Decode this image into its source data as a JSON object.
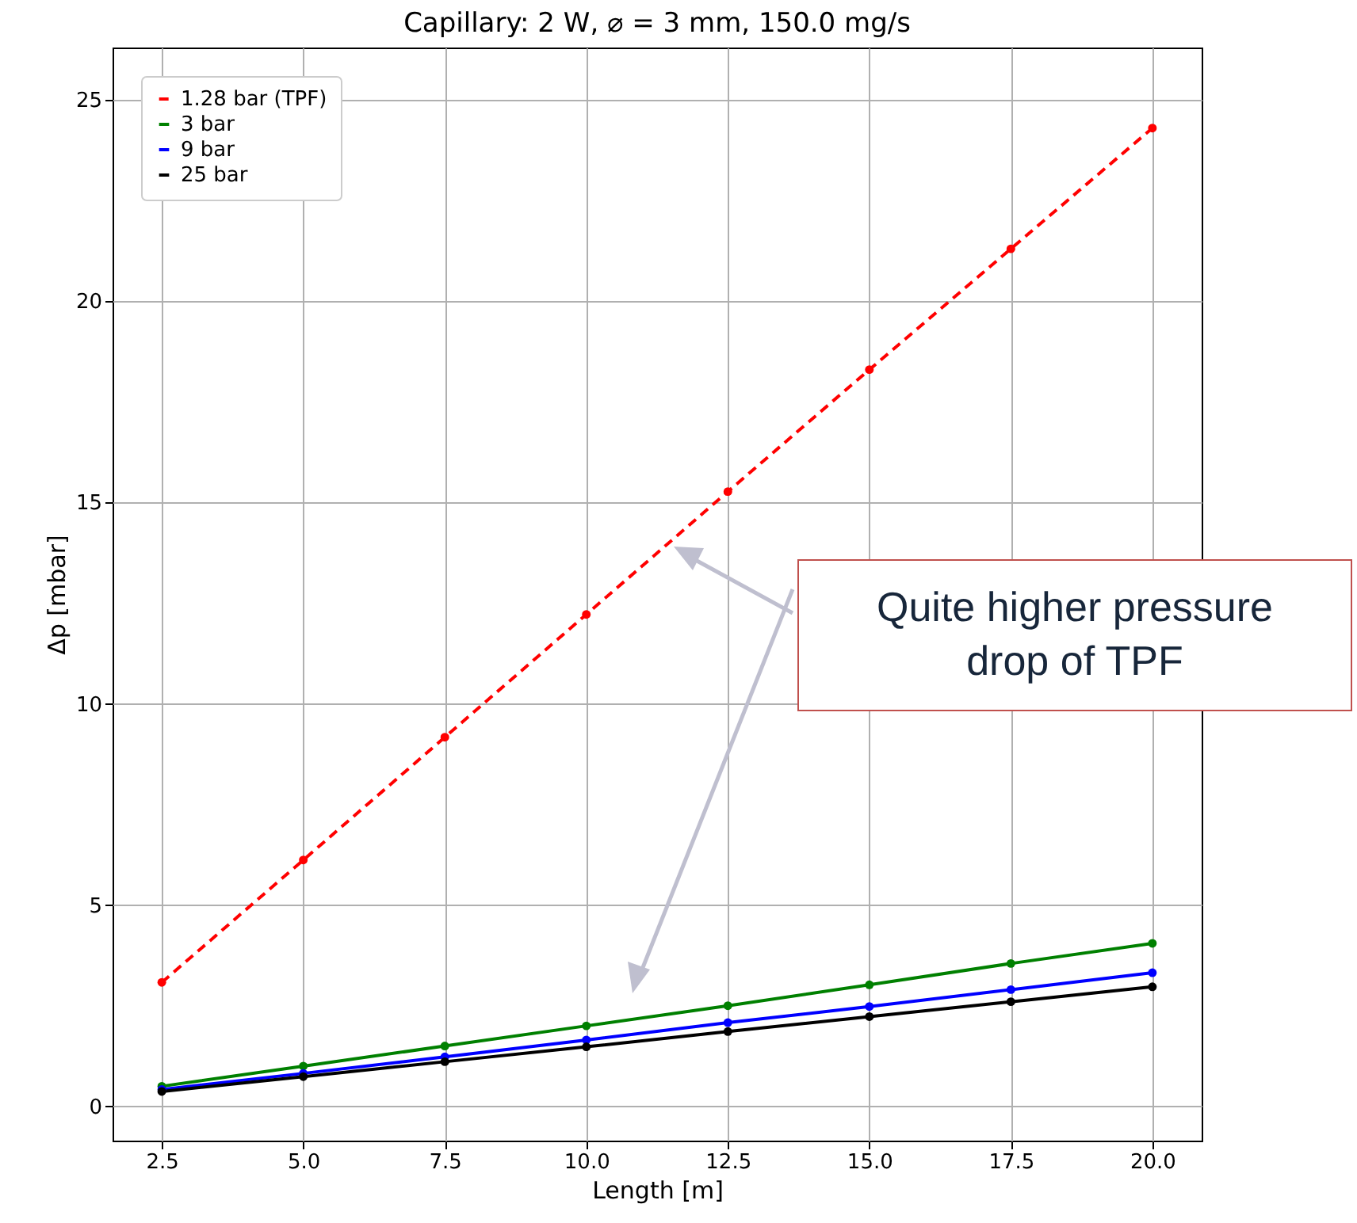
{
  "chart_data": {
    "type": "line",
    "title": "Capillary: 2 W, ⌀ = 3 mm, 150.0 mg/s",
    "xlabel": "Length [m]",
    "ylabel": "Δp [mbar]",
    "x": [
      2.5,
      5.0,
      7.5,
      10.0,
      12.5,
      15.0,
      17.5,
      20.0
    ],
    "series": [
      {
        "name": "1.28 bar (TPF)",
        "color": "#ff0000",
        "line_style": "dashed",
        "values": [
          3.08,
          6.12,
          9.17,
          12.22,
          15.27,
          18.3,
          21.3,
          24.3
        ]
      },
      {
        "name": "3 bar",
        "color": "#008000",
        "line_style": "solid",
        "values": [
          0.5,
          1.0,
          1.5,
          2.0,
          2.5,
          3.02,
          3.55,
          4.05
        ]
      },
      {
        "name": "9 bar",
        "color": "#0000ff",
        "line_style": "solid",
        "values": [
          0.42,
          0.82,
          1.23,
          1.65,
          2.08,
          2.48,
          2.9,
          3.32
        ]
      },
      {
        "name": "25 bar",
        "color": "#000000",
        "line_style": "solid",
        "values": [
          0.37,
          0.74,
          1.11,
          1.48,
          1.86,
          2.23,
          2.6,
          2.97
        ]
      }
    ],
    "xlim": [
      1.63,
      20.87
    ],
    "ylim": [
      -0.85,
      26.3
    ],
    "xticks": [
      {
        "value": 2.5,
        "label": "2.5"
      },
      {
        "value": 5,
        "label": "5.0"
      },
      {
        "value": 7.5,
        "label": "7.5"
      },
      {
        "value": 10,
        "label": "10.0"
      },
      {
        "value": 12.5,
        "label": "12.5"
      },
      {
        "value": 15,
        "label": "15.0"
      },
      {
        "value": 17.5,
        "label": "17.5"
      },
      {
        "value": 20,
        "label": "20.0"
      }
    ],
    "yticks": [
      0,
      5,
      10,
      15,
      20,
      25
    ],
    "grid": true,
    "legend": "top left",
    "marker": "circle",
    "annotations": [
      "Quite higher pressure drop of TPF"
    ]
  }
}
